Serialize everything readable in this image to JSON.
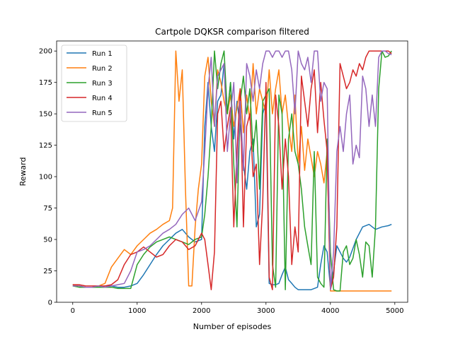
{
  "chart_data": {
    "type": "line",
    "title": "Cartpole DQKSR comparison filtered",
    "xlabel": "Number of episodes",
    "ylabel": "Reward",
    "xlim": [
      -250,
      5200
    ],
    "ylim": [
      0,
      208
    ],
    "xticks": [
      0,
      1000,
      2000,
      3000,
      4000,
      5000
    ],
    "yticks": [
      0,
      25,
      50,
      75,
      100,
      125,
      150,
      175,
      200
    ],
    "legend_position": "upper-left",
    "grid": false,
    "series": [
      {
        "name": "Run 1",
        "color": "#1f77b4",
        "x": [
          0,
          100,
          200,
          300,
          400,
          500,
          600,
          700,
          800,
          900,
          1000,
          1100,
          1200,
          1300,
          1400,
          1500,
          1600,
          1700,
          1800,
          1900,
          2000,
          2050,
          2100,
          2150,
          2200,
          2250,
          2300,
          2350,
          2400,
          2450,
          2500,
          2550,
          2600,
          2650,
          2700,
          2750,
          2800,
          2850,
          2900,
          2950,
          3000,
          3050,
          3100,
          3150,
          3200,
          3250,
          3300,
          3350,
          3400,
          3450,
          3500,
          3600,
          3700,
          3800,
          3850,
          3900,
          3950,
          4000,
          4050,
          4100,
          4150,
          4200,
          4250,
          4300,
          4400,
          4500,
          4600,
          4700,
          4800,
          4900,
          4950
        ],
        "y": [
          14,
          13,
          12,
          12,
          12,
          13,
          13,
          12,
          12,
          13,
          15,
          22,
          30,
          38,
          45,
          50,
          55,
          58,
          52,
          48,
          50,
          140,
          175,
          140,
          120,
          160,
          165,
          190,
          150,
          175,
          130,
          160,
          140,
          110,
          90,
          120,
          130,
          60,
          70,
          150,
          160,
          15,
          14,
          14,
          15,
          22,
          28,
          18,
          15,
          12,
          10,
          10,
          10,
          12,
          30,
          45,
          40,
          12,
          25,
          45,
          40,
          35,
          32,
          36,
          50,
          60,
          62,
          58,
          60,
          61,
          62
        ]
      },
      {
        "name": "Run 2",
        "color": "#ff7f0e",
        "x": [
          0,
          100,
          200,
          300,
          400,
          500,
          600,
          700,
          800,
          900,
          1000,
          1100,
          1200,
          1300,
          1400,
          1500,
          1550,
          1600,
          1650,
          1700,
          1750,
          1800,
          1850,
          1900,
          1950,
          2000,
          2050,
          2100,
          2150,
          2200,
          2250,
          2300,
          2350,
          2400,
          2450,
          2500,
          2550,
          2600,
          2650,
          2700,
          2750,
          2800,
          2850,
          2900,
          2950,
          3000,
          3050,
          3100,
          3150,
          3200,
          3250,
          3300,
          3350,
          3400,
          3450,
          3500,
          3550,
          3600,
          3650,
          3700,
          3750,
          3800,
          3850,
          3900,
          3950,
          4000,
          4100,
          4200,
          4300,
          4400,
          4500,
          4600,
          4700,
          4800,
          4900,
          4950
        ],
        "y": [
          14,
          13,
          12,
          12,
          13,
          15,
          28,
          35,
          42,
          38,
          45,
          50,
          55,
          58,
          62,
          65,
          75,
          200,
          160,
          185,
          90,
          13,
          13,
          60,
          90,
          110,
          180,
          195,
          160,
          140,
          185,
          175,
          160,
          150,
          165,
          140,
          155,
          170,
          135,
          165,
          145,
          190,
          150,
          170,
          160,
          150,
          185,
          150,
          170,
          185,
          150,
          165,
          140,
          120,
          165,
          110,
          140,
          105,
          130,
          115,
          100,
          120,
          110,
          95,
          120,
          9,
          9,
          9,
          9,
          9,
          9,
          9,
          9,
          9,
          9,
          9
        ]
      },
      {
        "name": "Run 3",
        "color": "#2ca02c",
        "x": [
          0,
          100,
          200,
          300,
          400,
          500,
          600,
          700,
          800,
          900,
          1000,
          1100,
          1200,
          1300,
          1400,
          1500,
          1600,
          1700,
          1800,
          1900,
          2000,
          2050,
          2100,
          2150,
          2200,
          2250,
          2300,
          2350,
          2400,
          2450,
          2500,
          2550,
          2600,
          2650,
          2700,
          2750,
          2800,
          2850,
          2900,
          2950,
          3000,
          3050,
          3100,
          3150,
          3200,
          3250,
          3300,
          3350,
          3400,
          3450,
          3500,
          3550,
          3600,
          3650,
          3700,
          3750,
          3800,
          3850,
          3900,
          3950,
          4000,
          4050,
          4100,
          4150,
          4200,
          4250,
          4300,
          4350,
          4400,
          4450,
          4500,
          4550,
          4600,
          4650,
          4700,
          4750,
          4800,
          4850,
          4900,
          4950
        ],
        "y": [
          13,
          12,
          12,
          12,
          12,
          12,
          12,
          11,
          11,
          11,
          30,
          38,
          44,
          48,
          50,
          52,
          50,
          48,
          46,
          50,
          52,
          70,
          100,
          140,
          200,
          170,
          190,
          200,
          150,
          175,
          110,
          60,
          160,
          180,
          150,
          170,
          120,
          145,
          90,
          160,
          165,
          170,
          30,
          12,
          165,
          150,
          10,
          130,
          150,
          120,
          110,
          90,
          60,
          45,
          30,
          120,
          20,
          15,
          12,
          130,
          40,
          10,
          9,
          9,
          40,
          45,
          30,
          35,
          50,
          38,
          20,
          48,
          45,
          20,
          60,
          170,
          200,
          195,
          196,
          200
        ]
      },
      {
        "name": "Run 4",
        "color": "#d62728",
        "x": [
          0,
          100,
          200,
          300,
          400,
          500,
          600,
          700,
          800,
          900,
          1000,
          1100,
          1200,
          1300,
          1400,
          1500,
          1600,
          1700,
          1800,
          1900,
          2000,
          2050,
          2100,
          2150,
          2200,
          2250,
          2300,
          2350,
          2400,
          2450,
          2500,
          2550,
          2600,
          2650,
          2700,
          2750,
          2800,
          2850,
          2900,
          2950,
          3000,
          3050,
          3100,
          3150,
          3200,
          3250,
          3300,
          3350,
          3400,
          3450,
          3500,
          3550,
          3600,
          3650,
          3700,
          3750,
          3800,
          3850,
          3900,
          3950,
          4000,
          4050,
          4100,
          4150,
          4200,
          4250,
          4300,
          4350,
          4400,
          4450,
          4500,
          4550,
          4600,
          4650,
          4700,
          4750,
          4800,
          4850,
          4900,
          4950
        ],
        "y": [
          14,
          14,
          13,
          13,
          13,
          13,
          14,
          18,
          30,
          38,
          40,
          44,
          40,
          36,
          38,
          45,
          50,
          48,
          42,
          45,
          55,
          50,
          30,
          10,
          40,
          150,
          160,
          120,
          140,
          155,
          60,
          120,
          170,
          60,
          140,
          150,
          100,
          110,
          30,
          80,
          175,
          20,
          10,
          165,
          140,
          90,
          130,
          100,
          30,
          60,
          40,
          180,
          160,
          140,
          170,
          185,
          135,
          175,
          145,
          120,
          10,
          20,
          60,
          190,
          180,
          170,
          175,
          185,
          180,
          190,
          185,
          195,
          200,
          200,
          200,
          200,
          200,
          200,
          200,
          198
        ]
      },
      {
        "name": "Run 5",
        "color": "#9467bd",
        "x": [
          0,
          100,
          200,
          300,
          400,
          500,
          600,
          700,
          800,
          900,
          1000,
          1100,
          1200,
          1300,
          1400,
          1500,
          1600,
          1700,
          1800,
          1900,
          2000,
          2050,
          2100,
          2150,
          2200,
          2250,
          2300,
          2350,
          2400,
          2450,
          2500,
          2550,
          2600,
          2650,
          2700,
          2750,
          2800,
          2850,
          2900,
          2950,
          3000,
          3050,
          3100,
          3150,
          3200,
          3250,
          3300,
          3350,
          3400,
          3450,
          3500,
          3550,
          3600,
          3650,
          3700,
          3750,
          3800,
          3850,
          3900,
          3950,
          4000,
          4050,
          4100,
          4150,
          4200,
          4250,
          4300,
          4350,
          4400,
          4450,
          4500,
          4550,
          4600,
          4650,
          4700,
          4750,
          4800,
          4850,
          4900,
          4950
        ],
        "y": [
          13,
          13,
          12,
          12,
          13,
          12,
          13,
          14,
          15,
          25,
          40,
          42,
          45,
          50,
          55,
          58,
          62,
          70,
          75,
          65,
          80,
          120,
          170,
          195,
          140,
          180,
          185,
          190,
          120,
          150,
          175,
          95,
          160,
          105,
          190,
          180,
          160,
          185,
          170,
          190,
          200,
          200,
          195,
          200,
          200,
          195,
          200,
          200,
          185,
          150,
          200,
          190,
          185,
          195,
          175,
          200,
          200,
          160,
          175,
          170,
          10,
          40,
          120,
          140,
          120,
          150,
          165,
          110,
          125,
          115,
          180,
          170,
          140,
          165,
          140,
          195,
          200,
          200,
          198,
          197
        ]
      }
    ]
  }
}
